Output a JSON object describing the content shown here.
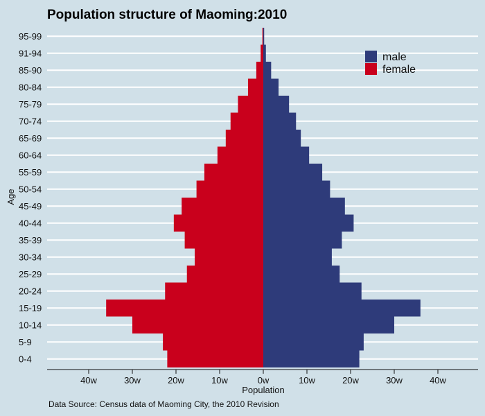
{
  "chart_data": {
    "type": "bar",
    "orientation": "horizontal",
    "title": "Population structure of Maoming:2010",
    "xlabel": "Population",
    "ylabel": "Age",
    "caption": "Data Source: Census data of Maoming City, the 2010 Revision",
    "categories": [
      "0-4",
      "5-9",
      "10-14",
      "15-19",
      "20-24",
      "25-29",
      "30-34",
      "35-39",
      "40-44",
      "45-49",
      "50-54",
      "55-59",
      "60-64",
      "65-69",
      "70-74",
      "75-79",
      "80-84",
      "85-90",
      "91-94",
      "95-99"
    ],
    "xlim": [
      -50,
      50
    ],
    "x_ticks": [
      -40,
      -30,
      -20,
      -10,
      0,
      10,
      20,
      30,
      40
    ],
    "x_tick_labels": [
      "40w",
      "30w",
      "20w",
      "10w",
      "0w",
      "10w",
      "20w",
      "30w",
      "40w"
    ],
    "legend_position": "top-right",
    "grid": true,
    "series": [
      {
        "name": "male",
        "color": "#2e3b7a",
        "values": [
          22,
          23,
          30,
          36,
          22.5,
          17.5,
          15.7,
          18,
          20.7,
          18.7,
          15.3,
          13.5,
          10.5,
          8.6,
          7.5,
          5.9,
          3.5,
          1.8,
          0.6,
          0.2
        ]
      },
      {
        "name": "female",
        "color": "#c9001c",
        "values": [
          22,
          23,
          30,
          36,
          22.5,
          17.5,
          15.7,
          18,
          20.5,
          18.7,
          15.3,
          13.5,
          10.5,
          8.6,
          7.5,
          5.8,
          3.5,
          1.6,
          0.6,
          0.2
        ]
      }
    ],
    "background_color": "#d0e0e8",
    "gridline_color": "#ffffff"
  }
}
